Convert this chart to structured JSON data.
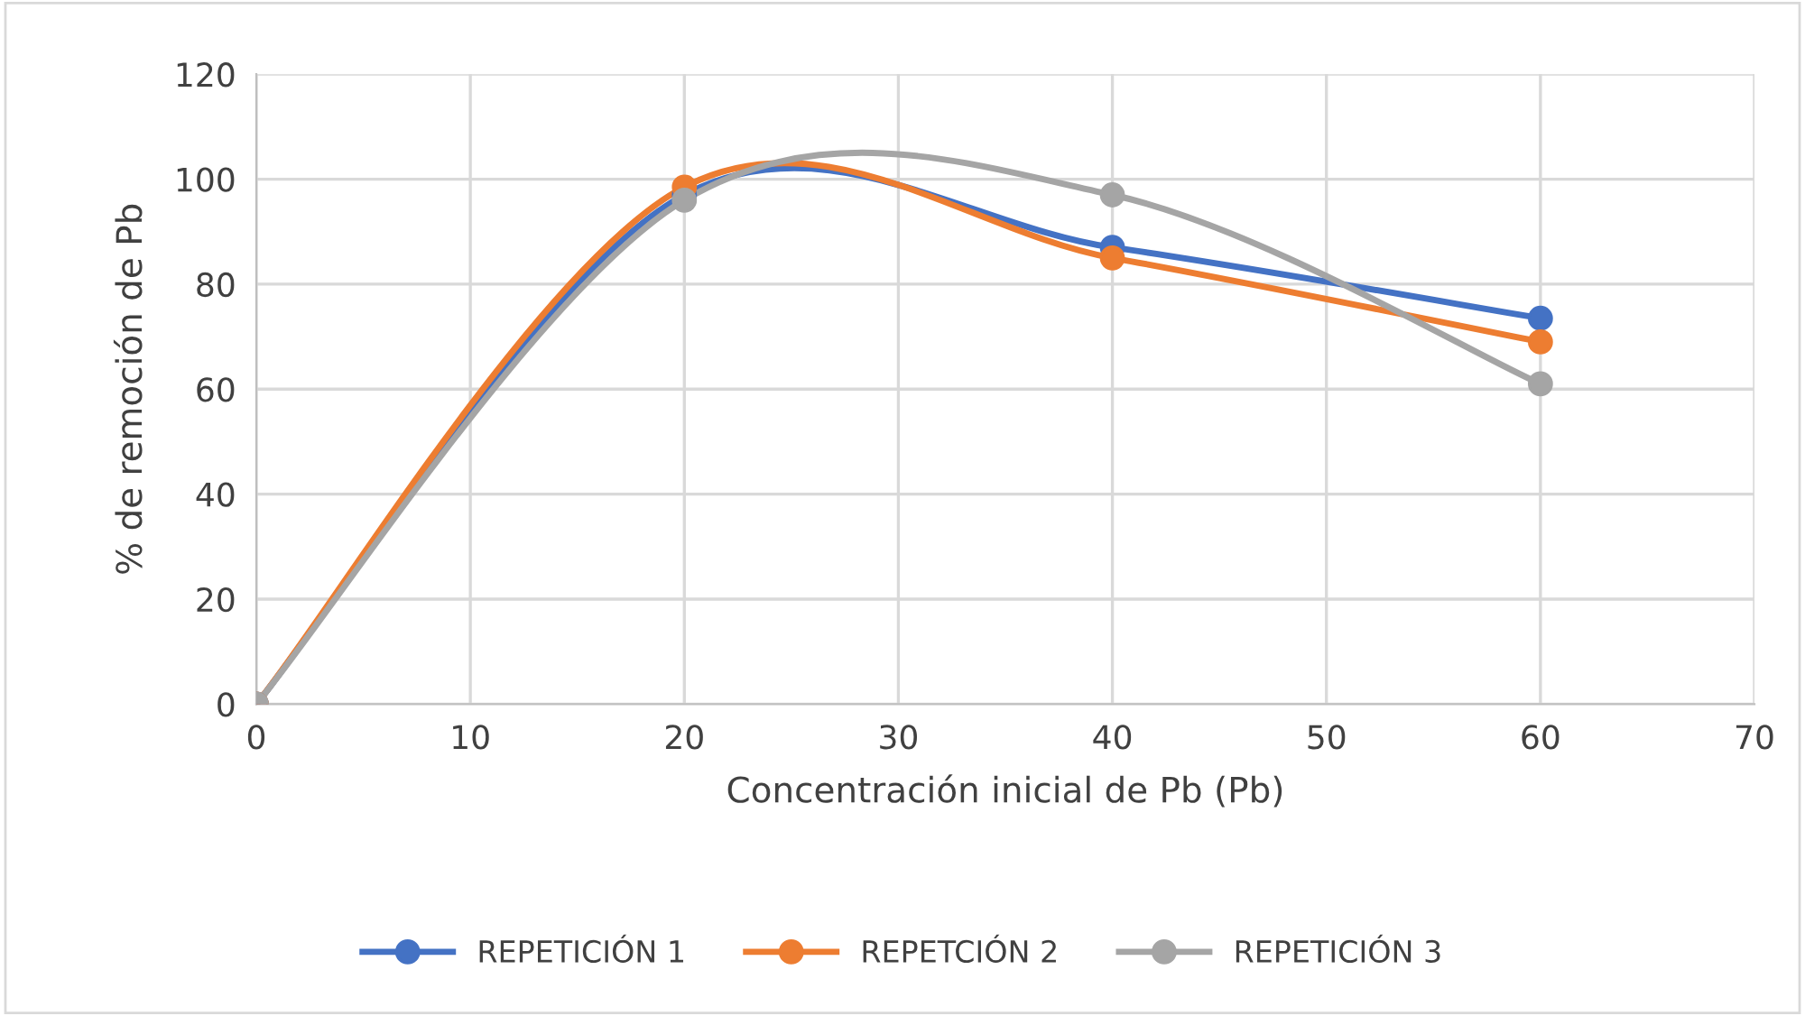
{
  "chart_data": {
    "type": "line",
    "xlabel": "Concentración inicial de Pb (Pb)",
    "ylabel": "% de remoción de Pb",
    "x": [
      0,
      20,
      40,
      60
    ],
    "series": [
      {
        "name": "REPETICIÓN 1",
        "color": "#4472c4",
        "values": [
          0,
          97,
          87,
          73.5
        ]
      },
      {
        "name": "REPETCIÓN 2",
        "color": "#ed7d31",
        "values": [
          0,
          98.5,
          85,
          69
        ]
      },
      {
        "name": "REPETICIÓN 3",
        "color": "#a5a5a5",
        "values": [
          0,
          96,
          97,
          61
        ]
      }
    ],
    "xlim": [
      0,
      70
    ],
    "xticks": [
      0,
      10,
      20,
      30,
      40,
      50,
      60,
      70
    ],
    "ylim": [
      0,
      120
    ],
    "yticks": [
      0,
      20,
      40,
      60,
      80,
      100,
      120
    ],
    "grid": true,
    "legend": "bottom",
    "marker": "circle",
    "line_style": "solid"
  }
}
